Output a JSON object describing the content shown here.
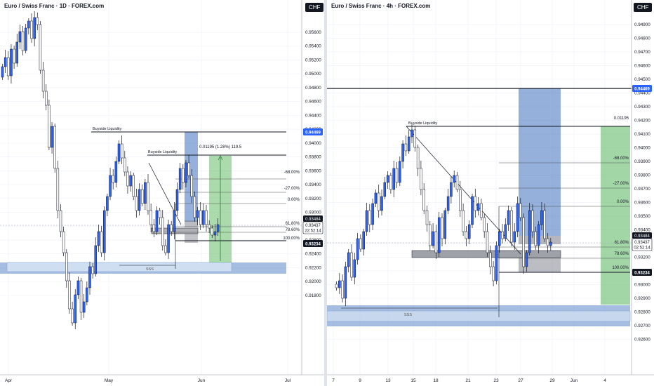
{
  "left": {
    "title": "Euro / Swiss Franc · 1D · FOREX.com",
    "currency": "CHF",
    "y_ticks": [
      "0.95600",
      "0.95400",
      "0.95200",
      "0.95000",
      "0.94800",
      "0.94600",
      "0.94400",
      "0.94200",
      "0.94000",
      "0.93800",
      "0.93600",
      "0.93400",
      "0.93200",
      "0.93000",
      "0.92800",
      "0.92600",
      "0.92400",
      "0.92200",
      "0.92000",
      "0.91800"
    ],
    "x_ticks": [
      "Apr",
      "May",
      "Jun",
      "Jul"
    ],
    "annotations": {
      "buyside1": "Buyside Liquidity",
      "buyside2": "Buyside Liquidity",
      "measure": "0.01195 (1.28%) 119.5",
      "fib_m68": "-68.00%",
      "fib_m27": "-27.00%",
      "fib_0": "0.00%",
      "fib_618": "61.80%",
      "fib_786": "78.60%",
      "fib_100": "100.00%",
      "sss": "SSS"
    },
    "price_tags": {
      "level": "0.94469",
      "ask": "0.93484",
      "last": "0.93437",
      "countdown": "22:52:14",
      "bid": "0.93234"
    }
  },
  "right": {
    "title": "Euro / Swiss Franc · 4h · FOREX.com",
    "currency": "CHF",
    "y_ticks": [
      "0.94900",
      "0.94800",
      "0.94700",
      "0.94600",
      "0.94500",
      "0.94400",
      "0.94300",
      "0.94200",
      "0.94100",
      "0.94000",
      "0.93900",
      "0.93800",
      "0.93700",
      "0.93600",
      "0.93500",
      "0.93400",
      "0.93300",
      "0.93200",
      "0.93100",
      "0.93000",
      "0.92900",
      "0.92800",
      "0.92700",
      "0.92600"
    ],
    "x_ticks": [
      "7",
      "9",
      "13",
      "15",
      "18",
      "21",
      "23",
      "27",
      "29",
      "Jun",
      "4"
    ],
    "annotations": {
      "buyside": "Buyside Liquidity",
      "measure": "0.01195",
      "fib_m68": "-68.00%",
      "fib_m27": "-27.00%",
      "fib_0": "0.00%",
      "fib_618": "61.80%",
      "fib_786": "78.60%",
      "fib_100": "100.00%",
      "sss": "SSS"
    },
    "price_tags": {
      "level": "0.94469",
      "ask": "0.93484",
      "last": "0.93437",
      "countdown": "02:52:14",
      "bid": "0.93234"
    }
  },
  "colors": {
    "bull": "#2962ff",
    "bear": "#ffffff",
    "wick": "#131722",
    "blue_zone": "#5b86c8",
    "green_zone": "#4caf50",
    "tag_blue": "#2962ff"
  }
}
